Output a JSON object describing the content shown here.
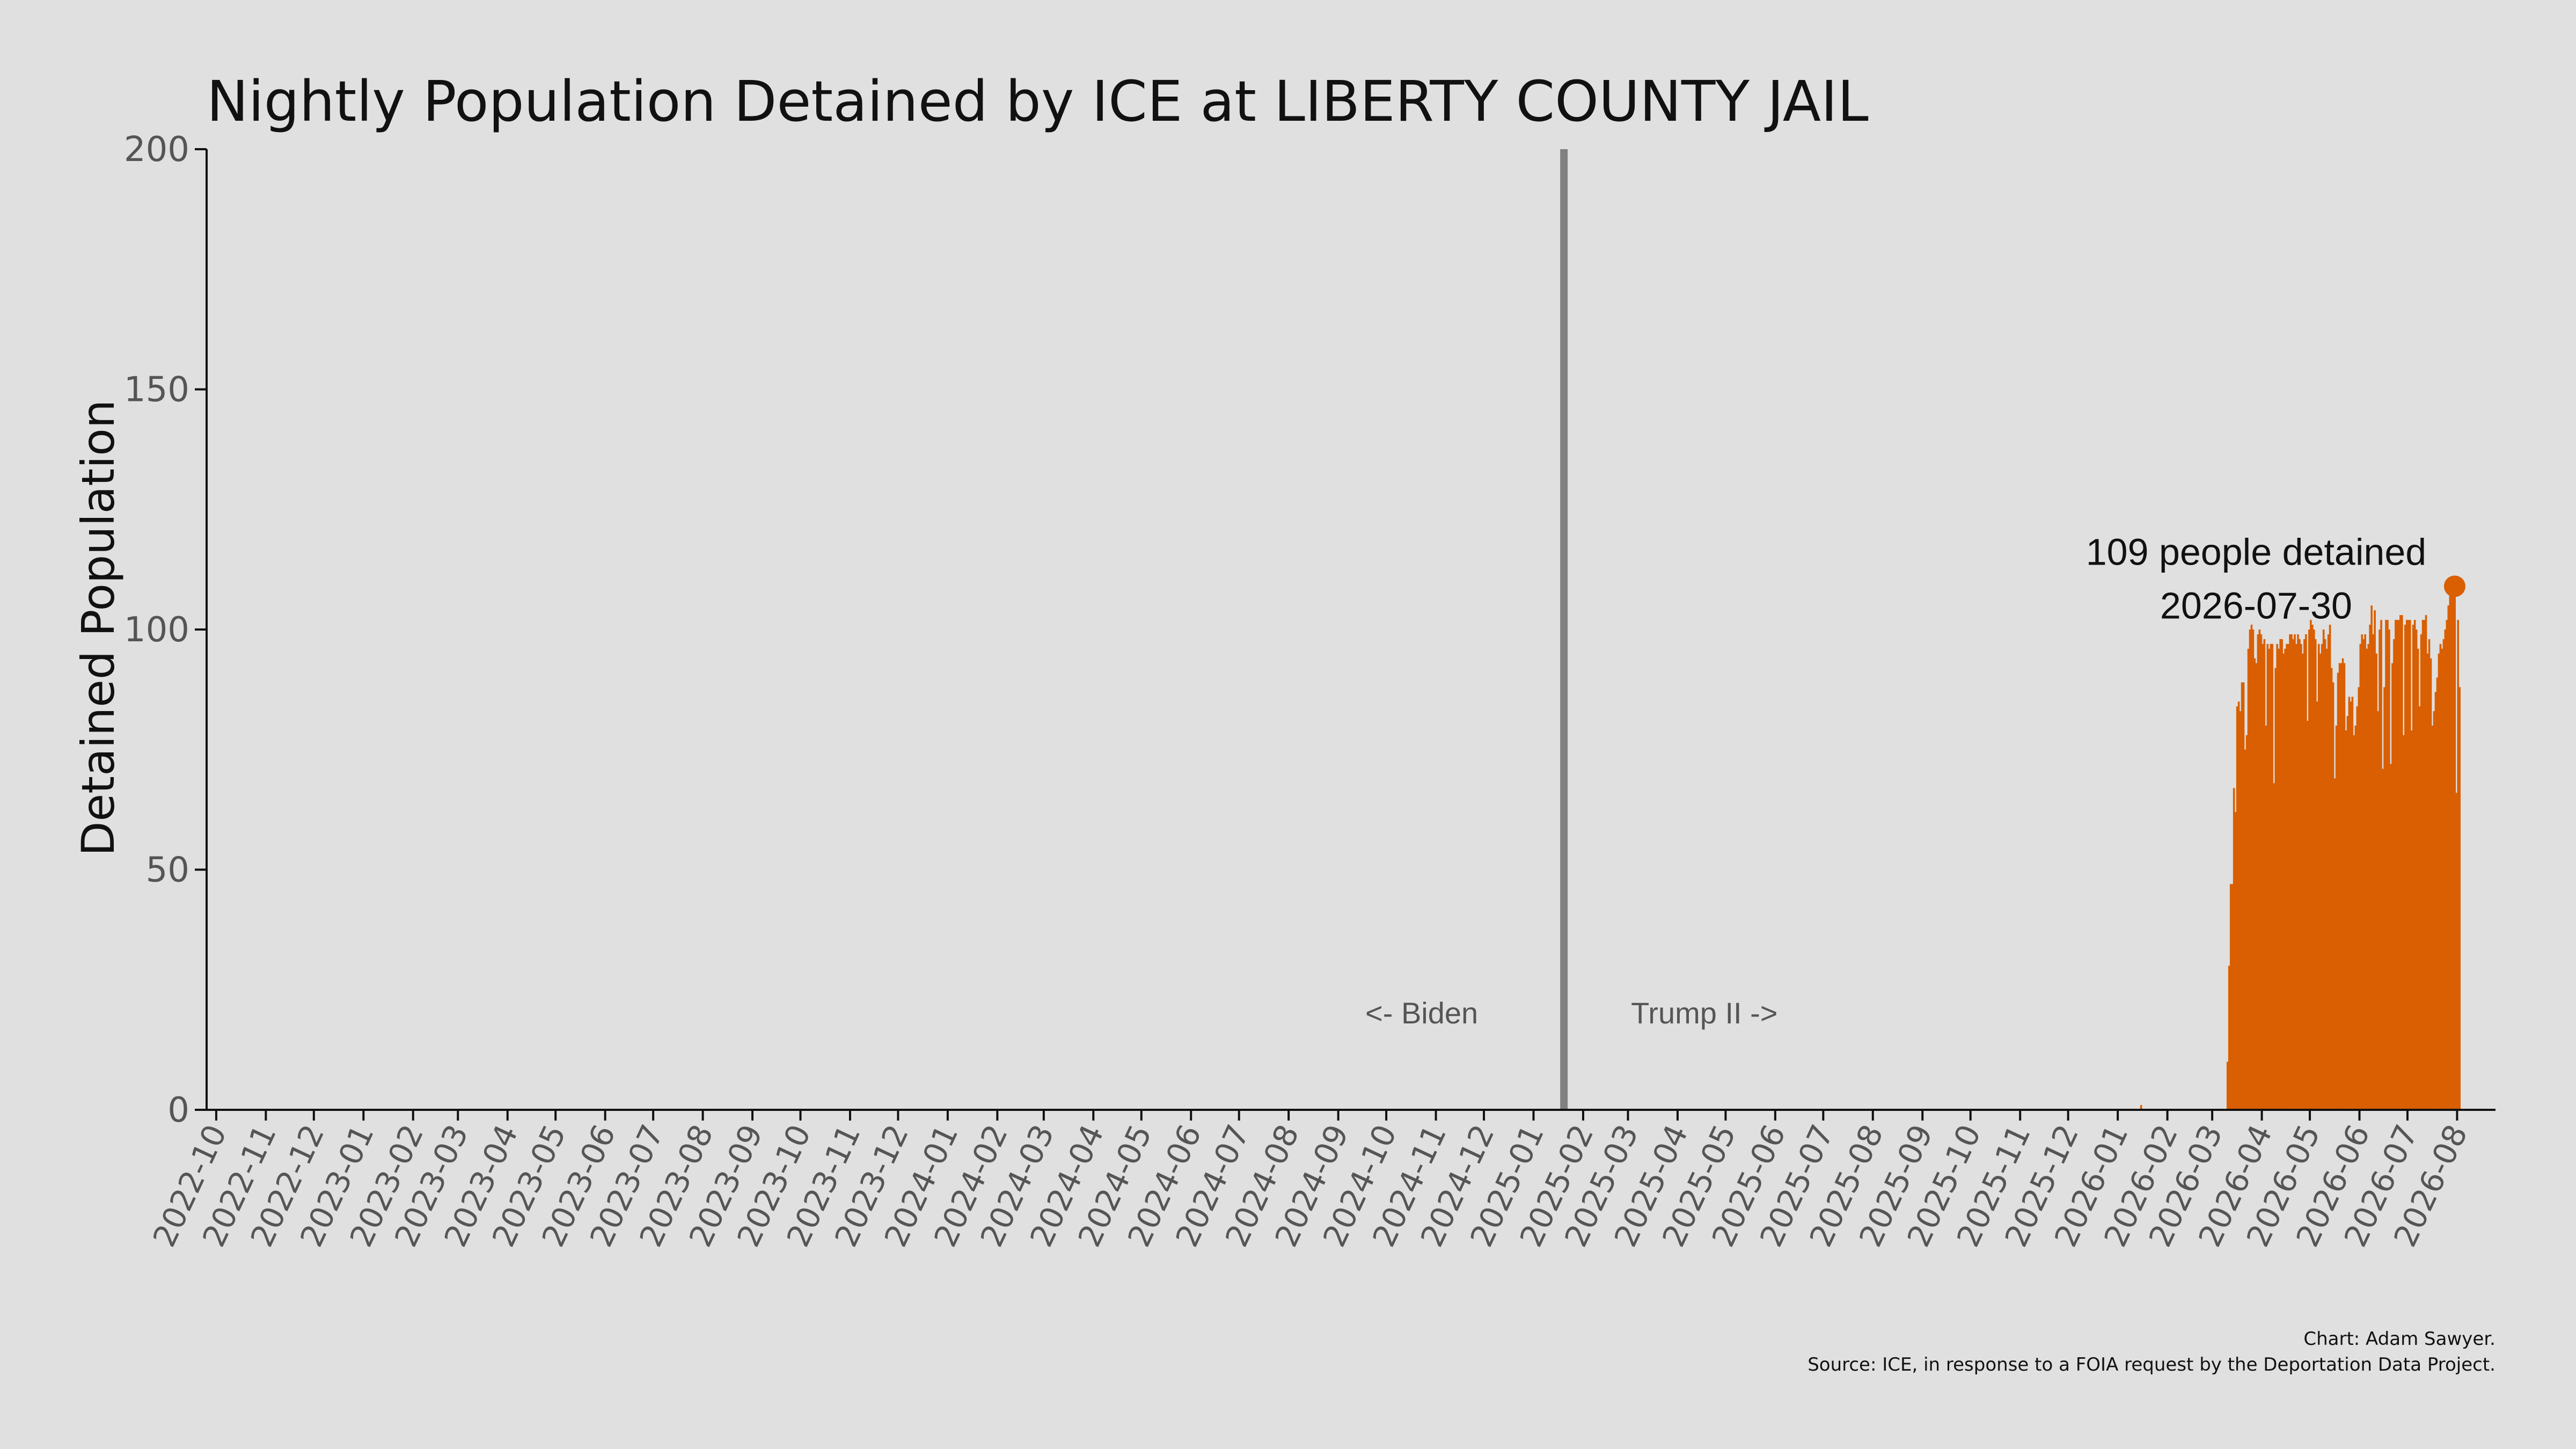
{
  "chart_data": {
    "type": "bar",
    "title": "Nightly Population Detained by ICE at LIBERTY COUNTY JAIL",
    "xlabel": "",
    "ylabel": "Detained Population",
    "ylim": [
      0,
      200
    ],
    "yticks": [
      0,
      50,
      100,
      150,
      200
    ],
    "xlim": [
      "2022-09-25",
      "2026-08-25"
    ],
    "xticks": [
      "2022-10",
      "2022-11",
      "2022-12",
      "2023-01",
      "2023-02",
      "2023-03",
      "2023-04",
      "2023-05",
      "2023-06",
      "2023-07",
      "2023-08",
      "2023-09",
      "2023-10",
      "2023-11",
      "2023-12",
      "2024-01",
      "2024-02",
      "2024-03",
      "2024-04",
      "2024-05",
      "2024-06",
      "2024-07",
      "2024-08",
      "2024-09",
      "2024-10",
      "2024-11",
      "2024-12",
      "2025-01",
      "2025-02",
      "2025-03",
      "2025-04",
      "2025-05",
      "2025-06",
      "2025-07",
      "2025-08",
      "2025-09",
      "2025-10",
      "2025-11",
      "2025-12",
      "2026-01",
      "2026-02",
      "2026-03",
      "2026-04",
      "2026-05",
      "2026-06",
      "2026-07",
      "2026-08"
    ],
    "grid": false,
    "bar_color": "#d95f02",
    "divider": {
      "date": "2025-01-20",
      "color": "#808080",
      "left_label": "<- Biden",
      "right_label": "Trump II ->"
    },
    "series": [
      {
        "values": [
          [
            "2026-01-15",
            1
          ],
          [
            "2026-03-10",
            10
          ],
          [
            "2026-03-11",
            30
          ],
          [
            "2026-03-12",
            47
          ],
          [
            "2026-03-13",
            47
          ],
          [
            "2026-03-14",
            67
          ],
          [
            "2026-03-15",
            62
          ],
          [
            "2026-03-16",
            84
          ],
          [
            "2026-03-17",
            85
          ],
          [
            "2026-03-18",
            83
          ],
          [
            "2026-03-19",
            89
          ],
          [
            "2026-03-20",
            89
          ],
          [
            "2026-03-21",
            75
          ],
          [
            "2026-03-22",
            78
          ],
          [
            "2026-03-23",
            96
          ],
          [
            "2026-03-24",
            100
          ],
          [
            "2026-03-25",
            101
          ],
          [
            "2026-03-26",
            100
          ],
          [
            "2026-03-27",
            94
          ],
          [
            "2026-03-28",
            93
          ],
          [
            "2026-03-29",
            99
          ],
          [
            "2026-03-30",
            100
          ],
          [
            "2026-03-31",
            99
          ],
          [
            "2026-04-01",
            97
          ],
          [
            "2026-04-02",
            98
          ],
          [
            "2026-04-03",
            80
          ],
          [
            "2026-04-04",
            97
          ],
          [
            "2026-04-05",
            96
          ],
          [
            "2026-04-06",
            97
          ],
          [
            "2026-04-07",
            97
          ],
          [
            "2026-04-08",
            68
          ],
          [
            "2026-04-09",
            92
          ],
          [
            "2026-04-10",
            97
          ],
          [
            "2026-04-11",
            96
          ],
          [
            "2026-04-12",
            98
          ],
          [
            "2026-04-13",
            98
          ],
          [
            "2026-04-14",
            95
          ],
          [
            "2026-04-15",
            96
          ],
          [
            "2026-04-16",
            97
          ],
          [
            "2026-04-17",
            97
          ],
          [
            "2026-04-18",
            99
          ],
          [
            "2026-04-19",
            99
          ],
          [
            "2026-04-20",
            98
          ],
          [
            "2026-04-21",
            99
          ],
          [
            "2026-04-22",
            97
          ],
          [
            "2026-04-23",
            99
          ],
          [
            "2026-04-24",
            98
          ],
          [
            "2026-04-25",
            97
          ],
          [
            "2026-04-26",
            95
          ],
          [
            "2026-04-27",
            98
          ],
          [
            "2026-04-28",
            99
          ],
          [
            "2026-04-29",
            81
          ],
          [
            "2026-04-30",
            100
          ],
          [
            "2026-05-01",
            102
          ],
          [
            "2026-05-02",
            101
          ],
          [
            "2026-05-03",
            100
          ],
          [
            "2026-05-04",
            98
          ],
          [
            "2026-05-05",
            85
          ],
          [
            "2026-05-06",
            97
          ],
          [
            "2026-05-07",
            95
          ],
          [
            "2026-05-08",
            97
          ],
          [
            "2026-05-09",
            100
          ],
          [
            "2026-05-10",
            98
          ],
          [
            "2026-05-11",
            96
          ],
          [
            "2026-05-12",
            99
          ],
          [
            "2026-05-13",
            101
          ],
          [
            "2026-05-14",
            92
          ],
          [
            "2026-05-15",
            89
          ],
          [
            "2026-05-16",
            69
          ],
          [
            "2026-05-17",
            80
          ],
          [
            "2026-05-18",
            91
          ],
          [
            "2026-05-19",
            93
          ],
          [
            "2026-05-20",
            93
          ],
          [
            "2026-05-21",
            94
          ],
          [
            "2026-05-22",
            93
          ],
          [
            "2026-05-23",
            79
          ],
          [
            "2026-05-24",
            82
          ],
          [
            "2026-05-25",
            86
          ],
          [
            "2026-05-26",
            85
          ],
          [
            "2026-05-27",
            86
          ],
          [
            "2026-05-28",
            78
          ],
          [
            "2026-05-29",
            80
          ],
          [
            "2026-05-30",
            84
          ],
          [
            "2026-05-31",
            88
          ],
          [
            "2026-06-01",
            97
          ],
          [
            "2026-06-02",
            99
          ],
          [
            "2026-06-03",
            98
          ],
          [
            "2026-06-04",
            99
          ],
          [
            "2026-06-05",
            96
          ],
          [
            "2026-06-06",
            97
          ],
          [
            "2026-06-07",
            101
          ],
          [
            "2026-06-08",
            105
          ],
          [
            "2026-06-09",
            99
          ],
          [
            "2026-06-10",
            104
          ],
          [
            "2026-06-11",
            95
          ],
          [
            "2026-06-12",
            83
          ],
          [
            "2026-06-13",
            100
          ],
          [
            "2026-06-14",
            102
          ],
          [
            "2026-06-15",
            71
          ],
          [
            "2026-06-16",
            88
          ],
          [
            "2026-06-17",
            102
          ],
          [
            "2026-06-18",
            102
          ],
          [
            "2026-06-19",
            100
          ],
          [
            "2026-06-20",
            72
          ],
          [
            "2026-06-21",
            93
          ],
          [
            "2026-06-22",
            98
          ],
          [
            "2026-06-23",
            102
          ],
          [
            "2026-06-24",
            102
          ],
          [
            "2026-06-25",
            102
          ],
          [
            "2026-06-26",
            103
          ],
          [
            "2026-06-27",
            103
          ],
          [
            "2026-06-28",
            78
          ],
          [
            "2026-06-29",
            101
          ],
          [
            "2026-06-30",
            102
          ],
          [
            "2026-07-01",
            102
          ],
          [
            "2026-07-02",
            102
          ],
          [
            "2026-07-03",
            79
          ],
          [
            "2026-07-04",
            101
          ],
          [
            "2026-07-05",
            102
          ],
          [
            "2026-07-06",
            100
          ],
          [
            "2026-07-07",
            96
          ],
          [
            "2026-07-08",
            84
          ],
          [
            "2026-07-09",
            99
          ],
          [
            "2026-07-10",
            102
          ],
          [
            "2026-07-11",
            102
          ],
          [
            "2026-07-12",
            103
          ],
          [
            "2026-07-13",
            95
          ],
          [
            "2026-07-14",
            98
          ],
          [
            "2026-07-15",
            94
          ],
          [
            "2026-07-16",
            80
          ],
          [
            "2026-07-17",
            83
          ],
          [
            "2026-07-18",
            87
          ],
          [
            "2026-07-19",
            90
          ],
          [
            "2026-07-20",
            95
          ],
          [
            "2026-07-21",
            97
          ],
          [
            "2026-07-22",
            96
          ],
          [
            "2026-07-23",
            98
          ],
          [
            "2026-07-24",
            100
          ],
          [
            "2026-07-25",
            102
          ],
          [
            "2026-07-26",
            105
          ],
          [
            "2026-07-27",
            107
          ],
          [
            "2026-07-28",
            108
          ],
          [
            "2026-07-29",
            108
          ],
          [
            "2026-07-30",
            109
          ],
          [
            "2026-07-31",
            66
          ],
          [
            "2026-08-01",
            102
          ],
          [
            "2026-08-02",
            88
          ]
        ]
      }
    ],
    "highlight": {
      "date": "2026-07-30",
      "value": 109,
      "line1": "109 people detained",
      "line2": "2026-07-30"
    },
    "credit": {
      "line1": "Chart: Adam Sawyer.",
      "line2": "Source: ICE, in response to a FOIA request by the Deportation Data Project."
    }
  }
}
